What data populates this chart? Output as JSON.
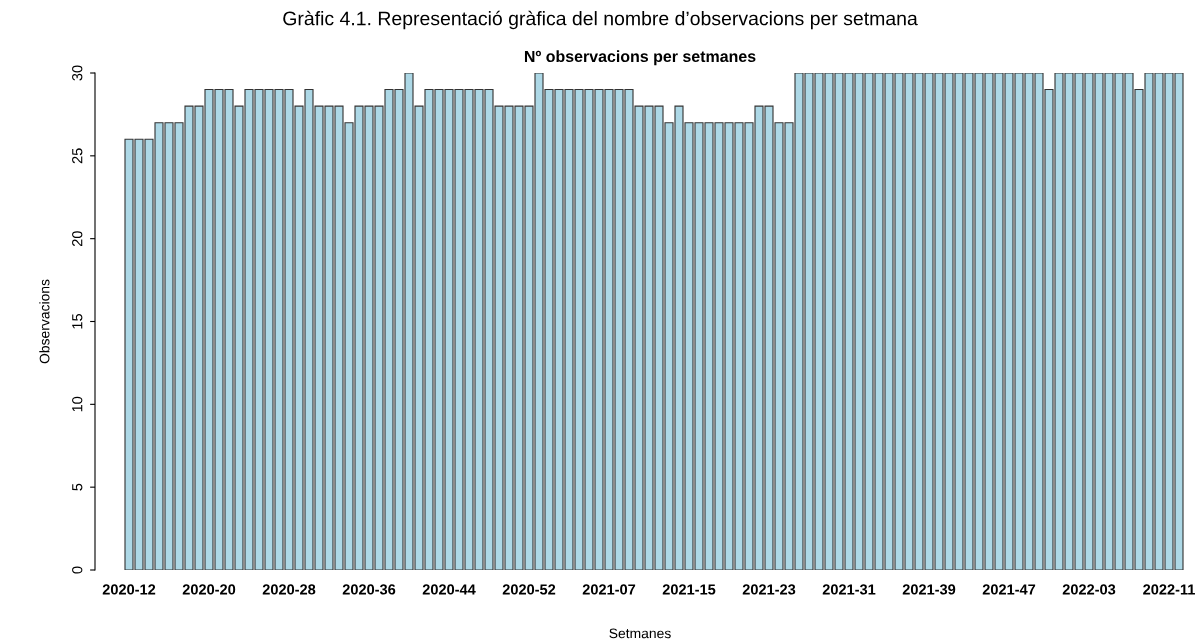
{
  "chart_data": {
    "type": "bar",
    "title": "Gràfic 4.1. Representació gràfica del nombre d’observacions per setmana",
    "subtitle": "Nº observacions per setmanes",
    "xlabel": "Setmanes",
    "ylabel": "Observacions",
    "color": "#add8e6",
    "categories": [
      "2020-12",
      null,
      null,
      null,
      null,
      null,
      null,
      null,
      "2020-20",
      null,
      null,
      null,
      null,
      null,
      null,
      null,
      "2020-28",
      null,
      null,
      null,
      null,
      null,
      null,
      null,
      "2020-36",
      null,
      null,
      null,
      null,
      null,
      null,
      null,
      "2020-44",
      null,
      null,
      null,
      null,
      null,
      null,
      null,
      "2020-52",
      null,
      null,
      null,
      null,
      null,
      null,
      null,
      "2021-07",
      null,
      null,
      null,
      null,
      null,
      null,
      null,
      "2021-15",
      null,
      null,
      null,
      null,
      null,
      null,
      null,
      "2021-23",
      null,
      null,
      null,
      null,
      null,
      null,
      null,
      "2021-31",
      null,
      null,
      null,
      null,
      null,
      null,
      null,
      "2021-39",
      null,
      null,
      null,
      null,
      null,
      null,
      null,
      "2021-47",
      null,
      null,
      null,
      null,
      null,
      null,
      null,
      "2022-03",
      null,
      null,
      null,
      null,
      null,
      null,
      null,
      "2022-11",
      null
    ],
    "values": [
      26,
      26,
      26,
      27,
      27,
      27,
      28,
      28,
      29,
      29,
      29,
      28,
      29,
      29,
      29,
      29,
      29,
      28,
      29,
      28,
      28,
      28,
      27,
      28,
      28,
      28,
      29,
      29,
      30,
      28,
      29,
      29,
      29,
      29,
      29,
      29,
      29,
      28,
      28,
      28,
      28,
      30,
      29,
      29,
      29,
      29,
      29,
      29,
      29,
      29,
      29,
      28,
      28,
      28,
      27,
      28,
      27,
      27,
      27,
      27,
      27,
      27,
      27,
      28,
      28,
      27,
      27,
      30,
      30,
      30,
      30,
      30,
      30,
      30,
      30,
      30,
      30,
      30,
      30,
      30,
      30,
      30,
      30,
      30,
      30,
      30,
      30,
      30,
      30,
      30,
      30,
      30,
      29,
      30,
      30,
      30,
      30,
      30,
      30,
      30,
      30,
      29,
      30,
      30,
      30,
      30
    ],
    "ylim": [
      0,
      30
    ],
    "yticks": [
      0,
      5,
      10,
      15,
      20,
      25,
      30
    ]
  }
}
